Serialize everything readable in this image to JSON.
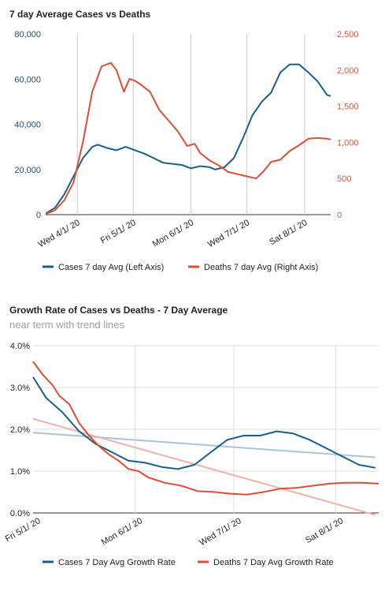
{
  "chart_data": [
    {
      "type": "line",
      "title": "7 day Average Cases vs Deaths",
      "x_start": "2020-03-15",
      "x_ticks": [
        "Wed 4/1/ 20",
        "Fri 5/1/ 20",
        "Mon 6/1/ 20",
        "Wed 7/1/ 20",
        "Sat 8/1/ 20"
      ],
      "x_tick_dates": [
        "2020-04-01",
        "2020-05-01",
        "2020-06-01",
        "2020-07-01",
        "2020-08-01"
      ],
      "ylim_left": [
        0,
        80000
      ],
      "yticks_left": [
        "0",
        "20,000",
        "40,000",
        "60,000",
        "80,000"
      ],
      "ylim_right": [
        0,
        2500
      ],
      "yticks_right": [
        "0",
        "500",
        "1,000",
        "1,500",
        "2,000",
        "2,500"
      ],
      "legend_position": "bottom",
      "series": [
        {
          "name": "Cases 7 day Avg (Left Axis)",
          "axis": "left",
          "color": "#1a5f86",
          "points": [
            [
              "2020-03-15",
              500
            ],
            [
              "2020-03-20",
              3000
            ],
            [
              "2020-03-25",
              9000
            ],
            [
              "2020-03-30",
              17000
            ],
            [
              "2020-04-04",
              25000
            ],
            [
              "2020-04-09",
              30000
            ],
            [
              "2020-04-12",
              31000
            ],
            [
              "2020-04-17",
              29500
            ],
            [
              "2020-04-22",
              28500
            ],
            [
              "2020-04-27",
              30000
            ],
            [
              "2020-05-02",
              28500
            ],
            [
              "2020-05-07",
              27000
            ],
            [
              "2020-05-12",
              25000
            ],
            [
              "2020-05-17",
              23000
            ],
            [
              "2020-05-22",
              22500
            ],
            [
              "2020-05-27",
              22000
            ],
            [
              "2020-06-01",
              20500
            ],
            [
              "2020-06-06",
              21500
            ],
            [
              "2020-06-11",
              21000
            ],
            [
              "2020-06-14",
              20000
            ],
            [
              "2020-06-19",
              21000
            ],
            [
              "2020-06-24",
              25000
            ],
            [
              "2020-06-29",
              34000
            ],
            [
              "2020-07-04",
              44000
            ],
            [
              "2020-07-09",
              50000
            ],
            [
              "2020-07-14",
              54000
            ],
            [
              "2020-07-19",
              63000
            ],
            [
              "2020-07-24",
              66500
            ],
            [
              "2020-07-29",
              66500
            ],
            [
              "2020-08-03",
              63000
            ],
            [
              "2020-08-08",
              59000
            ],
            [
              "2020-08-13",
              53000
            ],
            [
              "2020-08-15",
              52500
            ]
          ]
        },
        {
          "name": "Deaths 7 day Avg (Right Axis)",
          "axis": "right",
          "color": "#dc4e36",
          "points": [
            [
              "2020-03-15",
              10
            ],
            [
              "2020-03-20",
              60
            ],
            [
              "2020-03-25",
              200
            ],
            [
              "2020-03-30",
              450
            ],
            [
              "2020-04-04",
              1000
            ],
            [
              "2020-04-09",
              1700
            ],
            [
              "2020-04-14",
              2050
            ],
            [
              "2020-04-19",
              2100
            ],
            [
              "2020-04-22",
              2000
            ],
            [
              "2020-04-26",
              1700
            ],
            [
              "2020-04-29",
              1880
            ],
            [
              "2020-05-02",
              1850
            ],
            [
              "2020-05-05",
              1800
            ],
            [
              "2020-05-10",
              1700
            ],
            [
              "2020-05-15",
              1450
            ],
            [
              "2020-05-20",
              1300
            ],
            [
              "2020-05-25",
              1150
            ],
            [
              "2020-05-30",
              950
            ],
            [
              "2020-06-03",
              980
            ],
            [
              "2020-06-06",
              850
            ],
            [
              "2020-06-11",
              750
            ],
            [
              "2020-06-16",
              680
            ],
            [
              "2020-06-21",
              590
            ],
            [
              "2020-06-26",
              560
            ],
            [
              "2020-07-01",
              530
            ],
            [
              "2020-07-06",
              500
            ],
            [
              "2020-07-10",
              600
            ],
            [
              "2020-07-14",
              730
            ],
            [
              "2020-07-19",
              760
            ],
            [
              "2020-07-24",
              880
            ],
            [
              "2020-07-29",
              960
            ],
            [
              "2020-08-03",
              1050
            ],
            [
              "2020-08-08",
              1060
            ],
            [
              "2020-08-13",
              1050
            ],
            [
              "2020-08-15",
              1040
            ]
          ]
        }
      ]
    },
    {
      "type": "line",
      "title": "Growth Rate of Cases vs Deaths - 7 Day Average",
      "subtitle": "near term with trend lines",
      "x_start": "2020-05-01",
      "x_ticks": [
        "Fri 5/1/ 20",
        "Mon 6/1/ 20",
        "Wed 7/1/ 20",
        "Sat 8/1/ 20"
      ],
      "x_tick_dates": [
        "2020-05-01",
        "2020-06-01",
        "2020-07-01",
        "2020-08-01"
      ],
      "ylim": [
        0,
        4.0
      ],
      "yticks": [
        "0.0%",
        "1.0%",
        "2.0%",
        "3.0%",
        "4.0%"
      ],
      "legend_position": "bottom",
      "series": [
        {
          "name": "Cases 7 Day Avg Growth Rate",
          "color": "#1a5f86",
          "points": [
            [
              "2020-05-01",
              3.25
            ],
            [
              "2020-05-05",
              2.75
            ],
            [
              "2020-05-10",
              2.4
            ],
            [
              "2020-05-15",
              1.95
            ],
            [
              "2020-05-20",
              1.65
            ],
            [
              "2020-05-25",
              1.45
            ],
            [
              "2020-05-30",
              1.25
            ],
            [
              "2020-06-04",
              1.2
            ],
            [
              "2020-06-09",
              1.1
            ],
            [
              "2020-06-14",
              1.05
            ],
            [
              "2020-06-19",
              1.15
            ],
            [
              "2020-06-24",
              1.45
            ],
            [
              "2020-06-29",
              1.75
            ],
            [
              "2020-07-04",
              1.85
            ],
            [
              "2020-07-09",
              1.85
            ],
            [
              "2020-07-14",
              1.95
            ],
            [
              "2020-07-19",
              1.9
            ],
            [
              "2020-07-24",
              1.75
            ],
            [
              "2020-07-29",
              1.55
            ],
            [
              "2020-08-03",
              1.35
            ],
            [
              "2020-08-08",
              1.15
            ],
            [
              "2020-08-13",
              1.08
            ]
          ]
        },
        {
          "name": "Deaths 7 Day Avg Growth Rate",
          "color": "#dc4e36",
          "points": [
            [
              "2020-05-01",
              3.62
            ],
            [
              "2020-05-04",
              3.3
            ],
            [
              "2020-05-07",
              3.05
            ],
            [
              "2020-05-09",
              2.8
            ],
            [
              "2020-05-12",
              2.6
            ],
            [
              "2020-05-15",
              2.15
            ],
            [
              "2020-05-18",
              1.85
            ],
            [
              "2020-05-21",
              1.6
            ],
            [
              "2020-05-24",
              1.4
            ],
            [
              "2020-05-27",
              1.25
            ],
            [
              "2020-05-30",
              1.05
            ],
            [
              "2020-06-02",
              1.0
            ],
            [
              "2020-06-05",
              0.85
            ],
            [
              "2020-06-10",
              0.72
            ],
            [
              "2020-06-15",
              0.65
            ],
            [
              "2020-06-20",
              0.52
            ],
            [
              "2020-06-25",
              0.5
            ],
            [
              "2020-06-30",
              0.46
            ],
            [
              "2020-07-05",
              0.44
            ],
            [
              "2020-07-10",
              0.5
            ],
            [
              "2020-07-15",
              0.58
            ],
            [
              "2020-07-20",
              0.6
            ],
            [
              "2020-07-25",
              0.65
            ],
            [
              "2020-07-30",
              0.7
            ],
            [
              "2020-08-04",
              0.72
            ],
            [
              "2020-08-09",
              0.72
            ],
            [
              "2020-08-14",
              0.7
            ]
          ]
        }
      ],
      "trend_lines": [
        {
          "of": "Cases 7 Day Avg Growth Rate",
          "color": "#a9c4d6",
          "points": [
            [
              "2020-05-01",
              1.92
            ],
            [
              "2020-08-13",
              1.33
            ]
          ]
        },
        {
          "of": "Deaths 7 Day Avg Growth Rate",
          "color": "#f0b3a8",
          "points": [
            [
              "2020-05-01",
              2.25
            ],
            [
              "2020-08-13",
              -0.05
            ]
          ]
        }
      ]
    }
  ]
}
